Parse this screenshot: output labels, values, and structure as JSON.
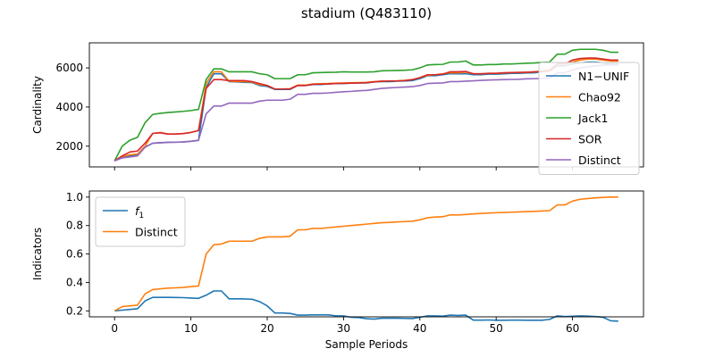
{
  "figure": {
    "title": "stadium (Q483110)"
  },
  "chart_data": [
    {
      "type": "line",
      "ylabel": "Cardinality",
      "xlabel": "",
      "xlim": [
        -3.3,
        69.3
      ],
      "ylim": [
        940,
        7280
      ],
      "xticks": [
        0,
        10,
        20,
        30,
        40,
        50,
        60
      ],
      "xtick_labels_visible": false,
      "yticks": [
        2000,
        4000,
        6000
      ],
      "ytick_labels": [
        "2000",
        "4000",
        "6000"
      ],
      "grid": false,
      "legend": "right",
      "series": [
        {
          "name": "N1−UNIF",
          "color": "#1f77b4",
          "x": [
            0,
            1,
            2,
            3,
            4,
            5,
            6,
            7,
            8,
            9,
            10,
            11,
            12,
            13,
            14,
            15,
            16,
            17,
            18,
            19,
            20,
            21,
            22,
            23,
            24,
            25,
            26,
            27,
            28,
            29,
            30,
            31,
            32,
            33,
            34,
            35,
            36,
            37,
            38,
            39,
            40,
            41,
            42,
            43,
            44,
            45,
            46,
            47,
            48,
            49,
            50,
            51,
            52,
            53,
            54,
            55,
            56,
            57,
            58,
            59,
            60,
            61,
            62,
            63,
            64,
            65,
            66
          ],
          "values": [
            1250,
            1450,
            1500,
            1550,
            1950,
            2150,
            2180,
            2200,
            2200,
            2220,
            2250,
            2300,
            5000,
            5700,
            5700,
            5300,
            5280,
            5260,
            5250,
            5100,
            5050,
            4900,
            4900,
            4900,
            5100,
            5100,
            5150,
            5150,
            5180,
            5200,
            5200,
            5220,
            5230,
            5230,
            5280,
            5300,
            5300,
            5320,
            5330,
            5350,
            5450,
            5600,
            5600,
            5650,
            5700,
            5700,
            5700,
            5650,
            5650,
            5680,
            5680,
            5700,
            5720,
            5720,
            5740,
            5750,
            5800,
            5850,
            6100,
            6100,
            6200,
            6250,
            6300,
            6300,
            6250,
            6200,
            6200
          ]
        },
        {
          "name": "Chao92",
          "color": "#ff7f0e",
          "x": [
            0,
            1,
            2,
            3,
            4,
            5,
            6,
            7,
            8,
            9,
            10,
            11,
            12,
            13,
            14,
            15,
            16,
            17,
            18,
            19,
            20,
            21,
            22,
            23,
            24,
            25,
            26,
            27,
            28,
            29,
            30,
            31,
            32,
            33,
            34,
            35,
            36,
            37,
            38,
            39,
            40,
            41,
            42,
            43,
            44,
            45,
            46,
            47,
            48,
            49,
            50,
            51,
            52,
            53,
            54,
            55,
            56,
            57,
            58,
            59,
            60,
            61,
            62,
            63,
            64,
            65,
            66
          ],
          "values": [
            1250,
            1480,
            1560,
            1600,
            2000,
            2650,
            2700,
            2620,
            2620,
            2650,
            2700,
            2800,
            5200,
            5800,
            5800,
            5320,
            5300,
            5300,
            5280,
            5150,
            5100,
            4920,
            4920,
            4930,
            5120,
            5120,
            5180,
            5190,
            5200,
            5220,
            5230,
            5240,
            5250,
            5260,
            5300,
            5320,
            5330,
            5340,
            5360,
            5400,
            5500,
            5620,
            5650,
            5700,
            5750,
            5750,
            5780,
            5700,
            5700,
            5720,
            5720,
            5740,
            5760,
            5760,
            5780,
            5790,
            5850,
            5900,
            6200,
            6200,
            6300,
            6400,
            6450,
            6450,
            6400,
            6350,
            6350
          ]
        },
        {
          "name": "Jack1",
          "color": "#2ca02c",
          "x": [
            0,
            1,
            2,
            3,
            4,
            5,
            6,
            7,
            8,
            9,
            10,
            11,
            12,
            13,
            14,
            15,
            16,
            17,
            18,
            19,
            20,
            21,
            22,
            23,
            24,
            25,
            26,
            27,
            28,
            29,
            30,
            31,
            32,
            33,
            34,
            35,
            36,
            37,
            38,
            39,
            40,
            41,
            42,
            43,
            44,
            45,
            46,
            47,
            48,
            49,
            50,
            51,
            52,
            53,
            54,
            55,
            56,
            57,
            58,
            59,
            60,
            61,
            62,
            63,
            64,
            65,
            66
          ],
          "values": [
            1250,
            2000,
            2300,
            2450,
            3200,
            3620,
            3680,
            3720,
            3750,
            3780,
            3820,
            3880,
            5400,
            5950,
            5950,
            5800,
            5800,
            5800,
            5800,
            5700,
            5650,
            5450,
            5450,
            5450,
            5650,
            5650,
            5750,
            5760,
            5770,
            5780,
            5800,
            5790,
            5790,
            5790,
            5800,
            5850,
            5860,
            5870,
            5880,
            5900,
            6000,
            6150,
            6170,
            6180,
            6300,
            6300,
            6350,
            6150,
            6150,
            6170,
            6170,
            6200,
            6200,
            6220,
            6240,
            6250,
            6280,
            6300,
            6700,
            6700,
            6900,
            6950,
            6950,
            6950,
            6900,
            6800,
            6800
          ]
        },
        {
          "name": "SOR",
          "color": "#d62728",
          "x": [
            0,
            1,
            2,
            3,
            4,
            5,
            6,
            7,
            8,
            9,
            10,
            11,
            12,
            13,
            14,
            15,
            16,
            17,
            18,
            19,
            20,
            21,
            22,
            23,
            24,
            25,
            26,
            27,
            28,
            29,
            30,
            31,
            32,
            33,
            34,
            35,
            36,
            37,
            38,
            39,
            40,
            41,
            42,
            43,
            44,
            45,
            46,
            47,
            48,
            49,
            50,
            51,
            52,
            53,
            54,
            55,
            56,
            57,
            58,
            59,
            60,
            61,
            62,
            63,
            64,
            65,
            66
          ],
          "values": [
            1250,
            1500,
            1700,
            1750,
            2150,
            2650,
            2680,
            2620,
            2620,
            2640,
            2700,
            2800,
            4950,
            5400,
            5400,
            5350,
            5350,
            5350,
            5300,
            5200,
            5100,
            4920,
            4920,
            4930,
            5100,
            5100,
            5160,
            5170,
            5180,
            5200,
            5210,
            5220,
            5230,
            5240,
            5280,
            5320,
            5330,
            5330,
            5350,
            5400,
            5500,
            5650,
            5650,
            5680,
            5800,
            5800,
            5820,
            5700,
            5700,
            5720,
            5720,
            5750,
            5760,
            5770,
            5780,
            5800,
            5820,
            5850,
            6200,
            6200,
            6400,
            6480,
            6500,
            6500,
            6450,
            6400,
            6400
          ]
        },
        {
          "name": "Distinct",
          "color": "#9467bd",
          "x": [
            0,
            1,
            2,
            3,
            4,
            5,
            6,
            7,
            8,
            9,
            10,
            11,
            12,
            13,
            14,
            15,
            16,
            17,
            18,
            19,
            20,
            21,
            22,
            23,
            24,
            25,
            26,
            27,
            28,
            29,
            30,
            31,
            32,
            33,
            34,
            35,
            36,
            37,
            38,
            39,
            40,
            41,
            42,
            43,
            44,
            45,
            46,
            47,
            48,
            49,
            50,
            51,
            52,
            53,
            54,
            55,
            56,
            57,
            58,
            59,
            60,
            61,
            62,
            63,
            64,
            65,
            66
          ],
          "values": [
            1250,
            1400,
            1450,
            1500,
            1950,
            2150,
            2170,
            2190,
            2200,
            2210,
            2250,
            2300,
            3650,
            4050,
            4050,
            4200,
            4200,
            4200,
            4200,
            4300,
            4350,
            4350,
            4350,
            4400,
            4650,
            4650,
            4700,
            4700,
            4720,
            4750,
            4780,
            4800,
            4830,
            4850,
            4900,
            4950,
            4980,
            5000,
            5020,
            5040,
            5100,
            5200,
            5220,
            5230,
            5300,
            5300,
            5320,
            5340,
            5360,
            5380,
            5390,
            5400,
            5410,
            5420,
            5440,
            5450,
            5460,
            5480,
            5750,
            5750,
            5900,
            6000,
            6050,
            6100,
            6150,
            6150,
            6150
          ]
        }
      ]
    },
    {
      "type": "line",
      "ylabel": "Indicators",
      "xlabel": "Sample Periods",
      "xlim": [
        -3.3,
        69.3
      ],
      "ylim": [
        0.158,
        1.043
      ],
      "xticks": [
        0,
        10,
        20,
        30,
        40,
        50,
        60
      ],
      "xtick_labels": [
        "0",
        "10",
        "20",
        "30",
        "40",
        "50",
        "60"
      ],
      "yticks": [
        0.2,
        0.4,
        0.6,
        0.8,
        1.0
      ],
      "ytick_labels": [
        "0.2",
        "0.4",
        "0.6",
        "0.8",
        "1.0"
      ],
      "grid": false,
      "legend": "upper left",
      "series": [
        {
          "name": "f1",
          "color": "#1f77b4",
          "x": [
            0,
            1,
            2,
            3,
            4,
            5,
            6,
            7,
            8,
            9,
            10,
            11,
            12,
            13,
            14,
            15,
            16,
            17,
            18,
            19,
            20,
            21,
            22,
            23,
            24,
            25,
            26,
            27,
            28,
            29,
            30,
            31,
            32,
            33,
            34,
            35,
            36,
            37,
            38,
            39,
            40,
            41,
            42,
            43,
            44,
            45,
            46,
            47,
            48,
            49,
            50,
            51,
            52,
            53,
            54,
            55,
            56,
            57,
            58,
            59,
            60,
            61,
            62,
            63,
            64,
            65,
            66
          ],
          "values": [
            0.2,
            0.205,
            0.21,
            0.215,
            0.27,
            0.295,
            0.295,
            0.295,
            0.294,
            0.293,
            0.29,
            0.288,
            0.31,
            0.34,
            0.34,
            0.285,
            0.285,
            0.284,
            0.282,
            0.265,
            0.235,
            0.185,
            0.185,
            0.182,
            0.17,
            0.17,
            0.172,
            0.172,
            0.172,
            0.165,
            0.165,
            0.155,
            0.153,
            0.145,
            0.142,
            0.148,
            0.148,
            0.148,
            0.147,
            0.146,
            0.155,
            0.165,
            0.165,
            0.163,
            0.17,
            0.168,
            0.17,
            0.135,
            0.135,
            0.136,
            0.134,
            0.134,
            0.135,
            0.135,
            0.134,
            0.134,
            0.134,
            0.14,
            0.165,
            0.16,
            0.162,
            0.165,
            0.163,
            0.16,
            0.155,
            0.13,
            0.128
          ]
        },
        {
          "name": "Distinct",
          "color": "#ff7f0e",
          "x": [
            0,
            1,
            2,
            3,
            4,
            5,
            6,
            7,
            8,
            9,
            10,
            11,
            12,
            13,
            14,
            15,
            16,
            17,
            18,
            19,
            20,
            21,
            22,
            23,
            24,
            25,
            26,
            27,
            28,
            29,
            30,
            31,
            32,
            33,
            34,
            35,
            36,
            37,
            38,
            39,
            40,
            41,
            42,
            43,
            44,
            45,
            46,
            47,
            48,
            49,
            50,
            51,
            52,
            53,
            54,
            55,
            56,
            57,
            58,
            59,
            60,
            61,
            62,
            63,
            64,
            65,
            66
          ],
          "values": [
            0.2,
            0.23,
            0.235,
            0.24,
            0.32,
            0.35,
            0.355,
            0.36,
            0.362,
            0.365,
            0.37,
            0.375,
            0.6,
            0.665,
            0.67,
            0.69,
            0.69,
            0.69,
            0.69,
            0.71,
            0.72,
            0.72,
            0.72,
            0.725,
            0.77,
            0.77,
            0.78,
            0.78,
            0.785,
            0.79,
            0.795,
            0.8,
            0.805,
            0.81,
            0.815,
            0.82,
            0.822,
            0.825,
            0.828,
            0.83,
            0.84,
            0.855,
            0.86,
            0.862,
            0.875,
            0.875,
            0.878,
            0.882,
            0.885,
            0.888,
            0.89,
            0.892,
            0.894,
            0.896,
            0.898,
            0.9,
            0.902,
            0.905,
            0.945,
            0.945,
            0.972,
            0.985,
            0.99,
            0.995,
            0.998,
            1.0,
            1.0
          ]
        }
      ]
    }
  ]
}
